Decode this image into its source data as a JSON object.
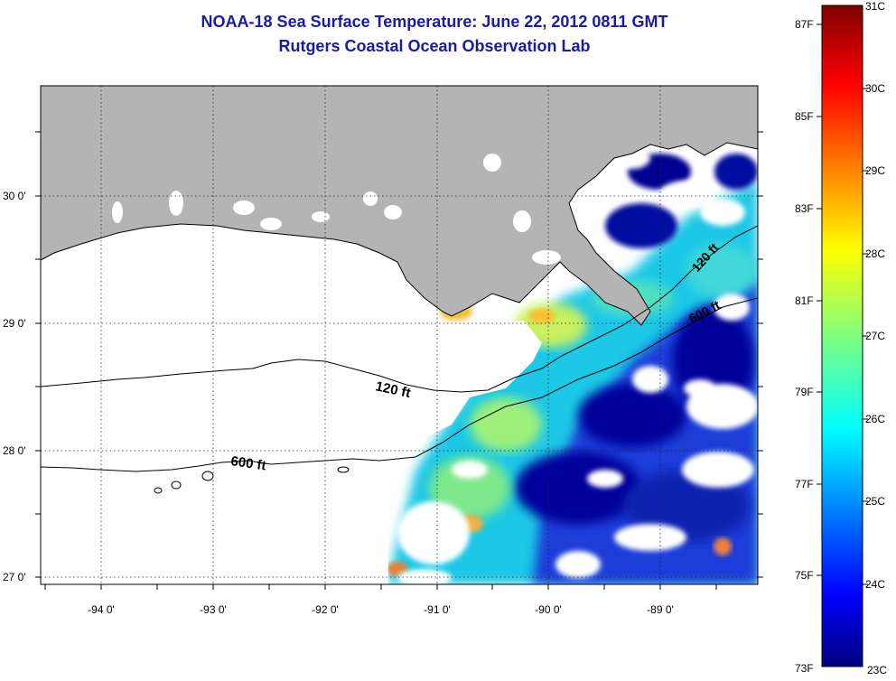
{
  "header": {
    "title": "NOAA-18 Sea Surface Temperature:  June 22, 2012 0811 GMT",
    "subtitle": "Rutgers Coastal Ocean Observation Lab"
  },
  "map": {
    "region": "Northern Gulf of Mexico",
    "lon_range": [
      -94.55,
      -88.35
    ],
    "lat_range": [
      26.95,
      30.85
    ],
    "lon_ticks": [
      "-94 0'",
      "-93 0'",
      "-92 0'",
      "-91 0'",
      "-90 0'",
      "-89 0'"
    ],
    "lat_ticks": [
      "27 0'",
      "28 0'",
      "29 0'",
      "30 0'"
    ],
    "contours": [
      {
        "label": "120 ft"
      },
      {
        "label": "600 ft"
      },
      {
        "label": "120 ft"
      },
      {
        "label": "600 ft"
      }
    ],
    "land_color": "#b4b4b4",
    "no_data_color": "#ffffff"
  },
  "colorbar": {
    "fahrenheit_labels": [
      "87F",
      "85F",
      "83F",
      "81F",
      "79F",
      "77F",
      "75F",
      "73F"
    ],
    "celsius_labels": [
      "31C",
      "30C",
      "29C",
      "28C",
      "27C",
      "26C",
      "25C",
      "24C",
      "23C"
    ],
    "range_c": [
      23,
      31
    ]
  }
}
